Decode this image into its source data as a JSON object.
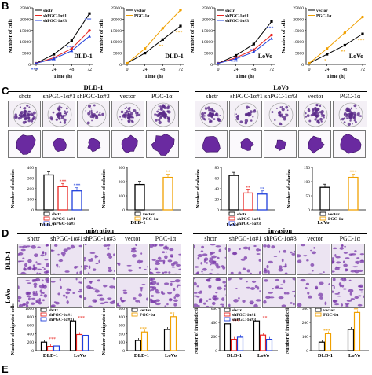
{
  "panels": {
    "B": {
      "letter": "B"
    },
    "C": {
      "letter": "C",
      "left_title": "DLD-1",
      "right_title": "LoVo",
      "col_labels_left": [
        "shctr",
        "shPGC-1α#1",
        "shPGC-1α#3",
        "vector",
        "PGC-1α"
      ],
      "col_labels_right": [
        "shctr",
        "shPGC-1α#1",
        "shPGC-1α#3",
        "vector",
        "PGC-1α"
      ]
    },
    "D": {
      "letter": "D",
      "left_title": "migration",
      "right_title": "invasion",
      "col_labels_left": [
        "shctr",
        "shPGC-1α#1",
        "shPGC-1α#3",
        "vector",
        "PGC-1α"
      ],
      "col_labels_right": [
        "shctr",
        "shPGC-1α#1",
        "shPGC-1α#3",
        "vector",
        "PGC-1α"
      ],
      "row_labels": [
        "DLD-1",
        "LoVo"
      ]
    },
    "E": {
      "letter": "E"
    }
  },
  "colors": {
    "shctr": "#000000",
    "sh1": "#e8231f",
    "sh3": "#1f3fdc",
    "vector": "#000000",
    "pgc": "#f0a000",
    "img_purple": "#5a2a8a"
  },
  "chart_data": [
    {
      "type": "line",
      "id": "B1",
      "xlabel": "Time (h)",
      "ylabel": "Number of cells",
      "x": [
        0,
        24,
        48,
        72
      ],
      "ylim": [
        0,
        25000
      ],
      "yticks": [
        "0",
        "5000",
        "10000",
        "15000",
        "20000",
        "25000"
      ],
      "annotation": "DLD-1",
      "series": [
        {
          "name": "shctr",
          "values": [
            500,
            4500,
            10500,
            22500
          ]
        },
        {
          "name": "shPGC-1α#1",
          "values": [
            500,
            3000,
            7000,
            15000
          ]
        },
        {
          "name": "shPGC-1α#3",
          "values": [
            500,
            2500,
            6000,
            12500
          ]
        }
      ],
      "marks": [
        "***",
        "***",
        "***",
        "***"
      ]
    },
    {
      "type": "line",
      "id": "B2",
      "xlabel": "Time (h)",
      "ylabel": "Number of cells",
      "x": [
        0,
        24,
        48,
        72
      ],
      "ylim": [
        0,
        25000
      ],
      "yticks": [
        "0",
        "5000",
        "10000",
        "15000",
        "20000",
        "25000"
      ],
      "annotation": "DLD-1",
      "series": [
        {
          "name": "vector",
          "values": [
            500,
            5000,
            11000,
            17000
          ]
        },
        {
          "name": "PGC-1α",
          "values": [
            500,
            7000,
            16000,
            24000
          ]
        }
      ],
      "marks": [
        "**",
        "***"
      ]
    },
    {
      "type": "line",
      "id": "B3",
      "xlabel": "Time (h)",
      "ylabel": "Number of cells",
      "x": [
        0,
        24,
        48,
        72
      ],
      "ylim": [
        0,
        25000
      ],
      "yticks": [
        "0",
        "5000",
        "10000",
        "15000",
        "20000",
        "25000"
      ],
      "annotation": "LoVo",
      "series": [
        {
          "name": "shctr",
          "values": [
            500,
            4000,
            9000,
            19000
          ]
        },
        {
          "name": "shPGC-1α#1",
          "values": [
            500,
            3000,
            6500,
            13000
          ]
        },
        {
          "name": "shPGC-1α#3",
          "values": [
            500,
            2500,
            5500,
            11500
          ]
        }
      ],
      "marks": [
        "***",
        "**",
        "***"
      ]
    },
    {
      "type": "line",
      "id": "B4",
      "xlabel": "Time (h)",
      "ylabel": "Number of cells",
      "x": [
        0,
        24,
        48,
        72
      ],
      "ylim": [
        0,
        25000
      ],
      "yticks": [
        "0",
        "5000",
        "10000",
        "15000",
        "20000",
        "25000"
      ],
      "annotation": "LoVo",
      "series": [
        {
          "name": "vector",
          "values": [
            500,
            4500,
            8500,
            13500
          ]
        },
        {
          "name": "PGC-1α",
          "values": [
            500,
            7000,
            14000,
            21000
          ]
        }
      ],
      "marks": [
        "*",
        "**",
        "***"
      ]
    },
    {
      "type": "bar",
      "id": "C1",
      "ylabel": "Number of colonies",
      "xlabel": "DLD-1",
      "categories": [
        "shctr",
        "shPGC-1α#1",
        "shPGC-1α#3"
      ],
      "values": [
        330,
        220,
        180
      ],
      "ylim": [
        0,
        400
      ],
      "yticks": [
        "0",
        "100",
        "200",
        "300",
        "400"
      ],
      "marks": [
        "",
        "***",
        "***"
      ]
    },
    {
      "type": "bar",
      "id": "C2",
      "ylabel": "Number of colonies",
      "xlabel": "DLD-1",
      "categories": [
        "vector",
        "PGC-1α"
      ],
      "values": [
        180,
        230
      ],
      "ylim": [
        0,
        300
      ],
      "yticks": [
        "0",
        "100",
        "200",
        "300"
      ],
      "marks": [
        "",
        "**"
      ]
    },
    {
      "type": "bar",
      "id": "C3",
      "ylabel": "Number of colonies",
      "xlabel": "LoVo",
      "categories": [
        "shctr",
        "shPGC-1α#1",
        "shPGC-1α#3"
      ],
      "values": [
        65,
        32,
        30
      ],
      "ylim": [
        0,
        80
      ],
      "yticks": [
        "0",
        "20",
        "40",
        "60",
        "80"
      ],
      "marks": [
        "",
        "**",
        "**"
      ]
    },
    {
      "type": "bar",
      "id": "C4",
      "ylabel": "Number of colonies",
      "xlabel": "LoVo",
      "categories": [
        "vector",
        "PGC-1α"
      ],
      "values": [
        80,
        115
      ],
      "ylim": [
        0,
        150
      ],
      "yticks": [
        "0",
        "50",
        "100",
        "150"
      ],
      "marks": [
        "",
        "***"
      ]
    },
    {
      "type": "bar",
      "id": "D1",
      "ylabel": "Number of migrated cells",
      "xlabel": "",
      "categories": [
        "DLD-1",
        "LoVo"
      ],
      "series": [
        {
          "name": "shctr",
          "values": [
            200,
            700
          ]
        },
        {
          "name": "shPGC-1α#1",
          "values": [
            100,
            380
          ]
        },
        {
          "name": "shPGC-1α#3",
          "values": [
            110,
            360
          ]
        }
      ],
      "ylim": [
        0,
        1000
      ],
      "yticks": [
        "0",
        "200",
        "400",
        "600",
        "800",
        "1000"
      ],
      "marks": [
        "***",
        "***"
      ]
    },
    {
      "type": "bar",
      "id": "D2",
      "ylabel": "Number of migrated cells",
      "xlabel": "",
      "categories": [
        "DLD-1",
        "LoVo"
      ],
      "series": [
        {
          "name": "vector",
          "values": [
            120,
            250
          ]
        },
        {
          "name": "PGC-1α",
          "values": [
            220,
            400
          ]
        }
      ],
      "ylim": [
        0,
        500
      ],
      "yticks": [
        "0",
        "100",
        "200",
        "300",
        "400",
        "500"
      ],
      "marks": [
        "***",
        "**"
      ]
    },
    {
      "type": "bar",
      "id": "D3",
      "ylabel": "Number of invaded cells",
      "xlabel": "",
      "categories": [
        "DLD-1",
        "LoVo"
      ],
      "series": [
        {
          "name": "shctr",
          "values": [
            380,
            420
          ]
        },
        {
          "name": "shPGC-1α#1",
          "values": [
            160,
            220
          ]
        },
        {
          "name": "shPGC-1α#3",
          "values": [
            190,
            160
          ]
        }
      ],
      "ylim": [
        0,
        600
      ],
      "yticks": [
        "0",
        "200",
        "400",
        "600"
      ],
      "marks": [
        "***",
        "**"
      ]
    },
    {
      "type": "bar",
      "id": "D4",
      "ylabel": "Number of invaded cells",
      "xlabel": "",
      "categories": [
        "DLD-1",
        "LoVo"
      ],
      "series": [
        {
          "name": "vector",
          "values": [
            60,
            150
          ]
        },
        {
          "name": "PGC-1α",
          "values": [
            120,
            270
          ]
        }
      ],
      "ylim": [
        0,
        300
      ],
      "yticks": [
        "0",
        "100",
        "200",
        "300"
      ],
      "marks": [
        "***",
        "**"
      ]
    }
  ]
}
